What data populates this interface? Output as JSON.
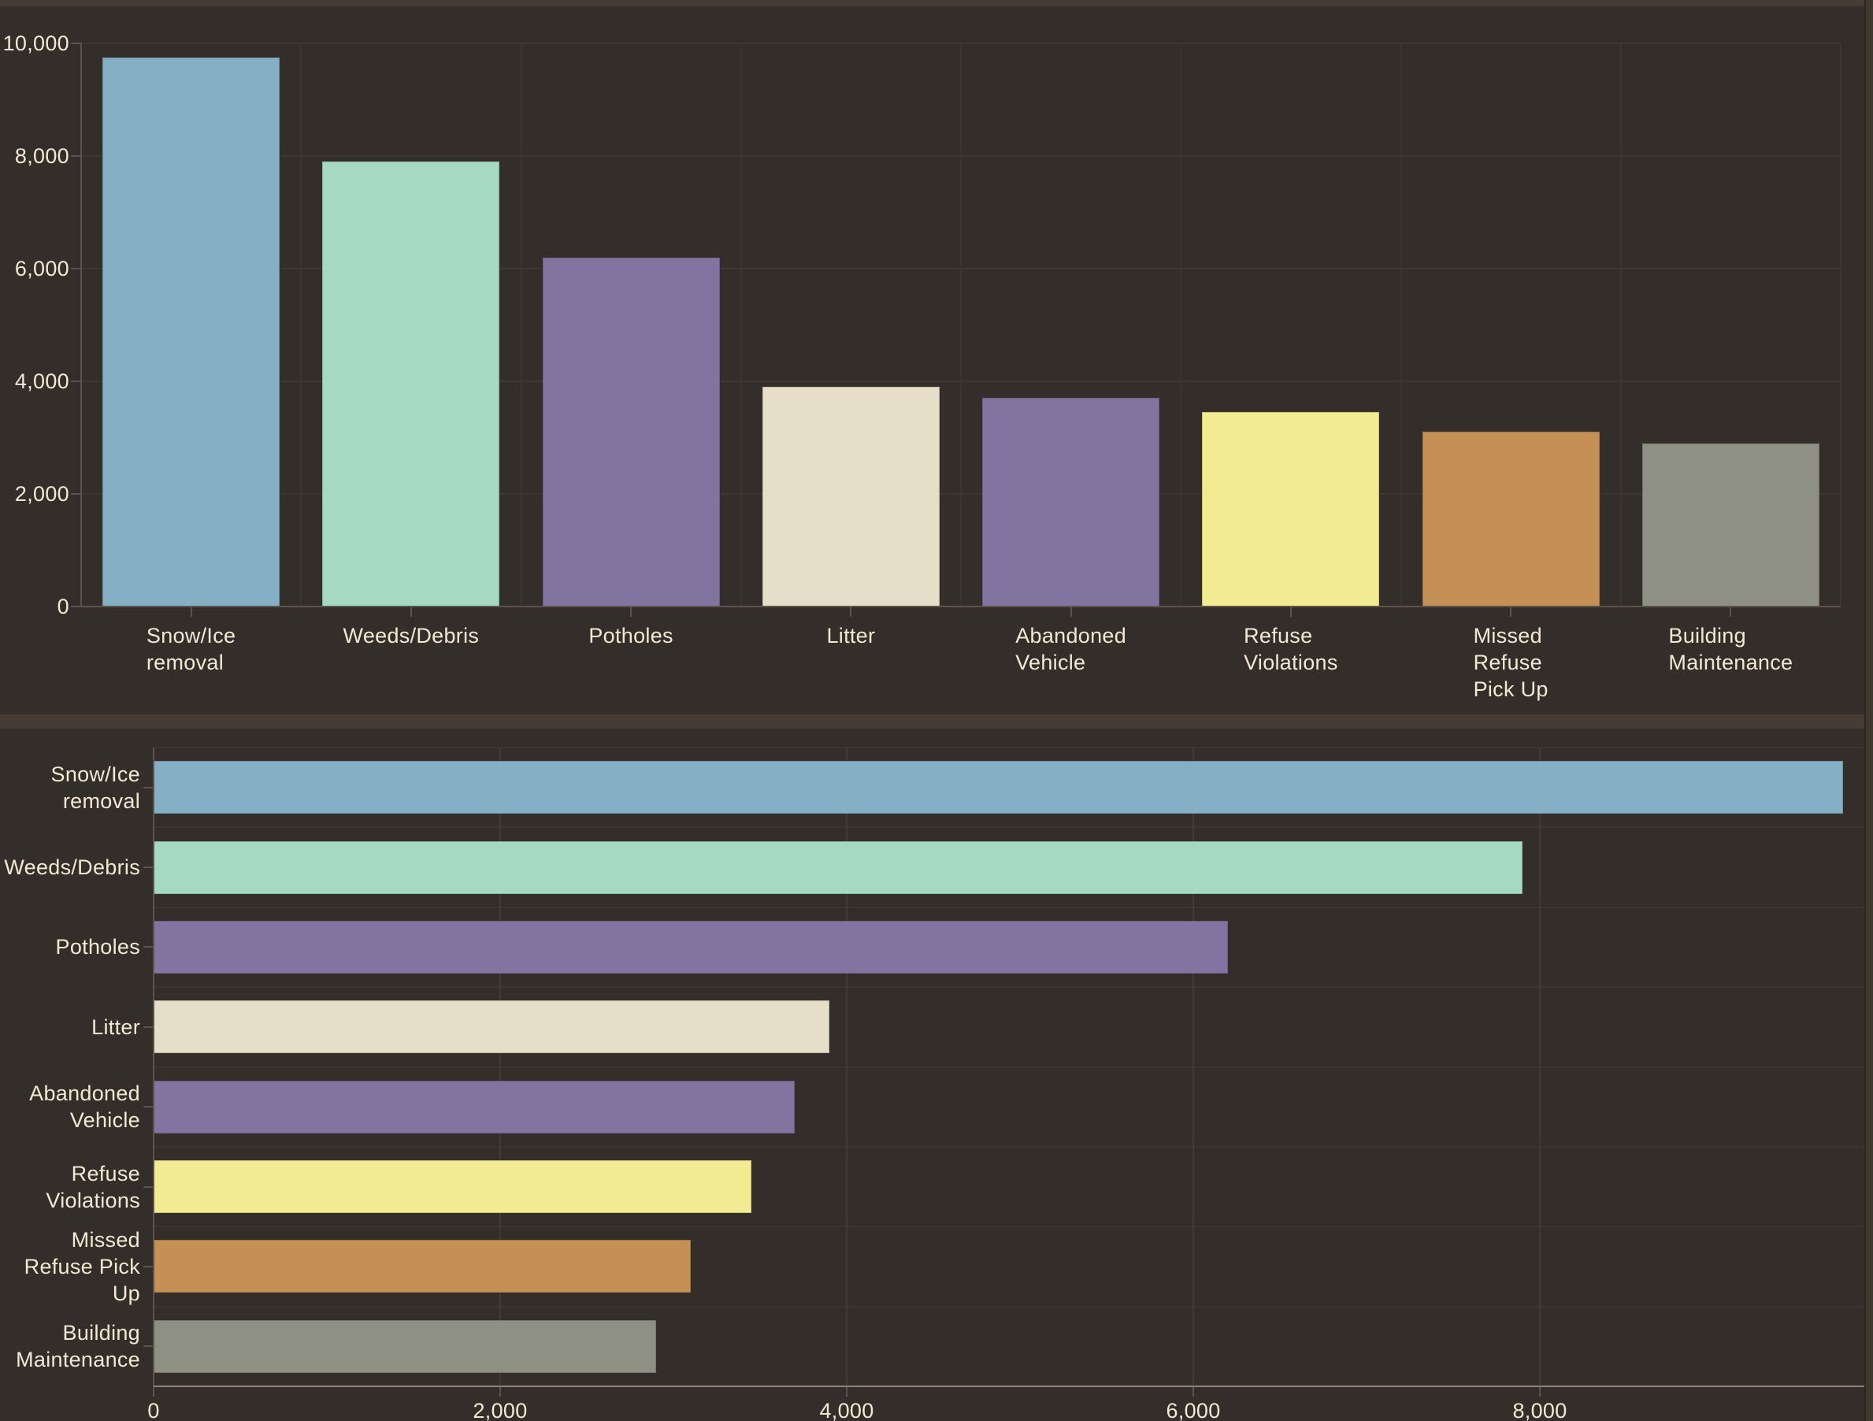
{
  "page": {
    "background": "#332e2a",
    "top_strip_color": "#453d35",
    "divider_color": "#453d35",
    "right_edge_color": "#3f382f",
    "text_color": "#f2e9d4",
    "grid_color": "#3c3730",
    "row_grid_color": "#3a352f",
    "value_grid_color": "#413b34",
    "axis_color": "#5b544b",
    "bottom_axis_line_color": "#8d8579"
  },
  "chart_data": [
    {
      "type": "bar",
      "orientation": "vertical",
      "title": "",
      "xlabel": "",
      "ylabel": "",
      "grid": true,
      "legend": false,
      "categories": [
        "Snow/Ice removal",
        "Weeds/Debris",
        "Potholes",
        "Litter",
        "Abandoned Vehicle",
        "Refuse Violations",
        "Missed Refuse Pick Up",
        "Building Maintenance"
      ],
      "category_lines": [
        [
          "Snow/Ice",
          "removal"
        ],
        [
          "Weeds/Debris"
        ],
        [
          "Potholes"
        ],
        [
          "Litter"
        ],
        [
          "Abandoned",
          "Vehicle"
        ],
        [
          "Refuse",
          "Violations"
        ],
        [
          "Missed",
          "Refuse",
          "Pick Up"
        ],
        [
          "Building",
          "Maintenance"
        ]
      ],
      "values": [
        9750,
        7900,
        6200,
        3900,
        3700,
        3450,
        3100,
        2900
      ],
      "bar_colors": [
        "#85afc4",
        "#a6d9c1",
        "#8274a0",
        "#e7deca",
        "#8274a0",
        "#f3eb91",
        "#c49055",
        "#8e9083"
      ],
      "ylim": [
        0,
        10000
      ],
      "y_ticks": [
        {
          "value": 0,
          "label": "0"
        },
        {
          "value": 2000,
          "label": "2,000"
        },
        {
          "value": 4000,
          "label": "4,000"
        },
        {
          "value": 6000,
          "label": "6,000"
        },
        {
          "value": 8000,
          "label": "8,000"
        },
        {
          "value": 10000,
          "label": "10,000"
        }
      ]
    },
    {
      "type": "bar",
      "orientation": "horizontal",
      "title": "",
      "xlabel": "",
      "ylabel": "",
      "grid": true,
      "legend": false,
      "categories": [
        "Snow/Ice removal",
        "Weeds/Debris",
        "Potholes",
        "Litter",
        "Abandoned Vehicle",
        "Refuse Violations",
        "Missed Refuse Pick Up",
        "Building Maintenance"
      ],
      "category_lines": [
        [
          "Snow/Ice",
          "removal"
        ],
        [
          "Weeds/Debris"
        ],
        [
          "Potholes"
        ],
        [
          "Litter"
        ],
        [
          "Abandoned",
          "Vehicle"
        ],
        [
          "Refuse",
          "Violations"
        ],
        [
          "Missed",
          "Refuse Pick",
          "Up"
        ],
        [
          "Building",
          "Maintenance"
        ]
      ],
      "values": [
        9750,
        7900,
        6200,
        3900,
        3700,
        3450,
        3100,
        2900
      ],
      "bar_colors": [
        "#85afc4",
        "#a6d9c1",
        "#8274a0",
        "#e7deca",
        "#8274a0",
        "#f3eb91",
        "#c49055",
        "#8e9083"
      ],
      "xlim": [
        0,
        9920
      ],
      "x_ticks": [
        {
          "value": 0,
          "label": "0"
        },
        {
          "value": 2000,
          "label": "2,000"
        },
        {
          "value": 4000,
          "label": "4,000"
        },
        {
          "value": 6000,
          "label": "6,000"
        },
        {
          "value": 8000,
          "label": "8,000"
        }
      ]
    }
  ]
}
